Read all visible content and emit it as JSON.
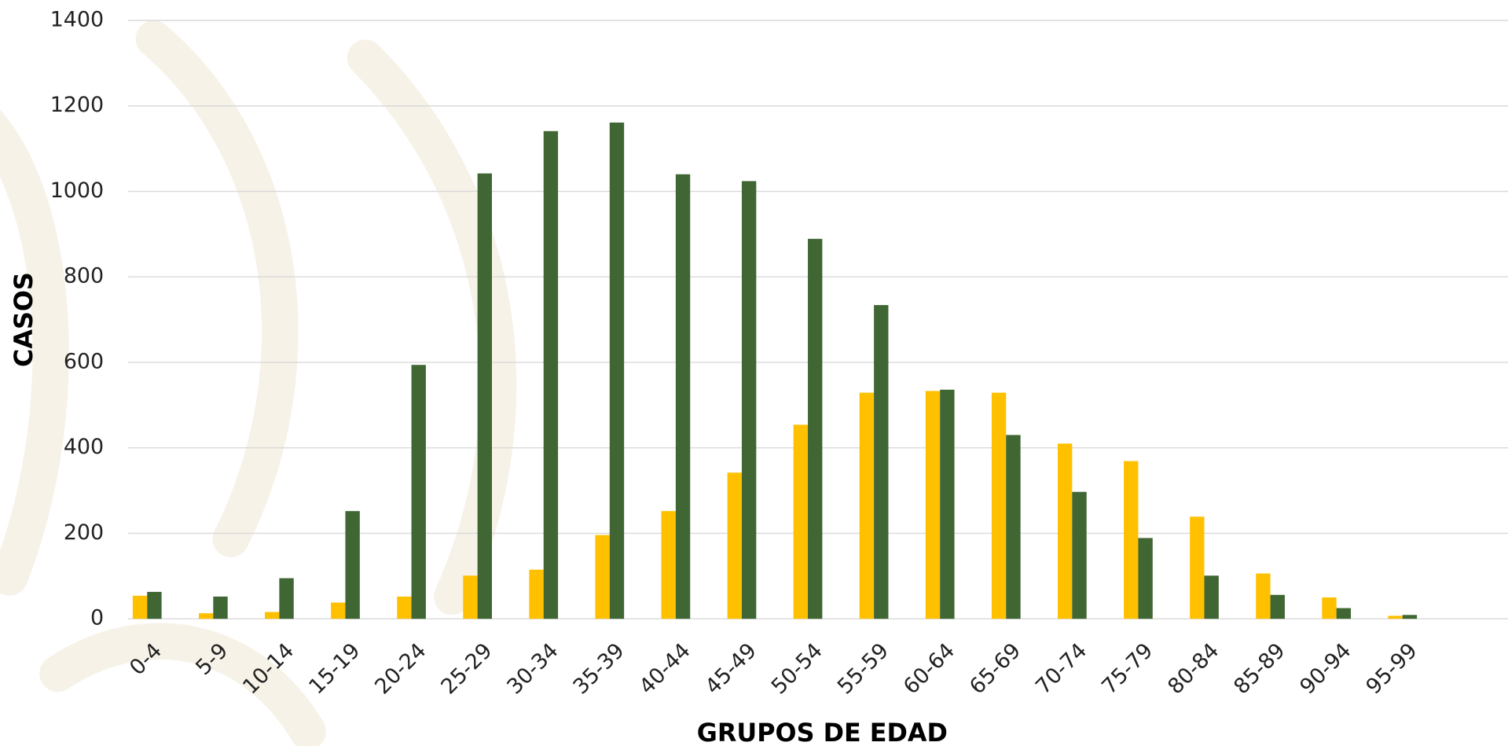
{
  "chart_data": {
    "type": "bar",
    "categories": [
      "0-4",
      "5-9",
      "10-14",
      "15-19",
      "20-24",
      "25-29",
      "30-34",
      "35-39",
      "40-44",
      "45-49",
      "50-54",
      "55-59",
      "60-64",
      "65-69",
      "70-74",
      "75-79",
      "80-84",
      "85-89",
      "90-94",
      "95-99"
    ],
    "series": [
      {
        "color": "#ffc000",
        "values": [
          54,
          13,
          16,
          38,
          52,
          101,
          115,
          196,
          252,
          342,
          454,
          529,
          533,
          529,
          410,
          369,
          239,
          106,
          50,
          7
        ]
      },
      {
        "color": "#3f6633",
        "values": [
          63,
          52,
          95,
          252,
          594,
          1042,
          1141,
          1161,
          1040,
          1024,
          889,
          734,
          536,
          430,
          297,
          189,
          101,
          56,
          25,
          9
        ]
      }
    ],
    "xlabel": "GRUPOS DE EDAD",
    "ylabel": "CASOS",
    "ylim": [
      0,
      1400
    ],
    "yticks": [
      0,
      200,
      400,
      600,
      800,
      1000,
      1200,
      1400
    ],
    "grid": true
  }
}
